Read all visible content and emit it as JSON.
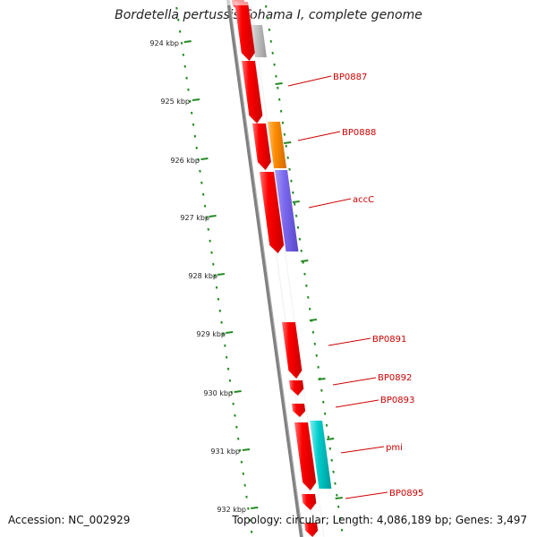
{
  "map": {
    "title": "Bordetella pertussis Tohama I, complete genome",
    "accession": "Accession: NC_002929",
    "topology": "Topology: circular; Length: 4,086,189 bp; Genes: 3,497"
  },
  "scale": {
    "ticks": [
      "924 kbp",
      "925 kbp",
      "926 kbp",
      "927 kbp",
      "928 kbp",
      "929 kbp",
      "930 kbp",
      "931 kbp",
      "932 kbp"
    ]
  },
  "genes": {
    "labels": [
      "BP0887",
      "BP0888",
      "accC",
      "BP0891",
      "BP0892",
      "BP0893",
      "pmi",
      "BP0895"
    ]
  },
  "colors": {
    "gene_red": "#ff0000",
    "gene_orange": "#ff8c00",
    "gene_purple": "#7b68ee",
    "gene_cyan": "#00cccc",
    "gene_gray": "#bbbbbb",
    "backbone": "#808080",
    "tick_green": "#228b22",
    "label_red": "#cc0000"
  }
}
